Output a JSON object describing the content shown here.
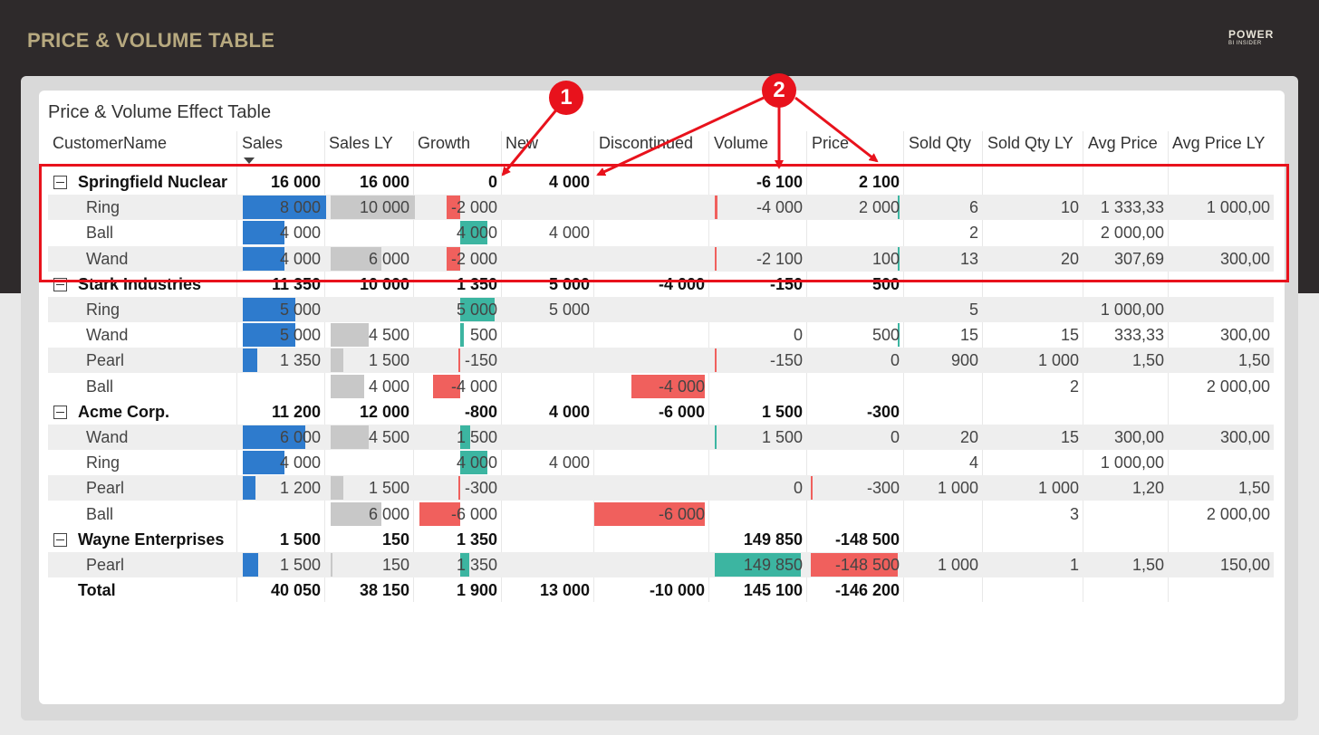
{
  "header": {
    "title": "PRICE & VOLUME TABLE",
    "logo_main": "POWER",
    "logo_sub": "BI INSIDER"
  },
  "visual": {
    "title": "Price & Volume Effect Table"
  },
  "columns": [
    "CustomerName",
    "Sales",
    "Sales LY",
    "Growth",
    "New",
    "Discontinued",
    "Volume",
    "Price",
    "Sold Qty",
    "Sold Qty LY",
    "Avg Price",
    "Avg Price LY"
  ],
  "annotations": {
    "one": "1",
    "two": "2"
  },
  "rows": [
    {
      "type": "group",
      "name": "Springfield Nuclear",
      "sales": "16 000",
      "sales_ly": "16 000",
      "growth": "0",
      "new": "4 000",
      "disc": "",
      "volume": "-6 100",
      "price": "2 100",
      "qty": "",
      "qty_ly": "",
      "avg": "",
      "avg_ly": "",
      "bars": {}
    },
    {
      "type": "child",
      "name": "Ring",
      "sales": "8 000",
      "sales_ly": "10 000",
      "growth": "-2 000",
      "new": "",
      "disc": "",
      "volume": "-4 000",
      "price": "2 000",
      "qty": "6",
      "qty_ly": "10",
      "avg": "1 333,33",
      "avg_ly": "1 000,00",
      "bars": {
        "sales": 8000,
        "sales_ly": 10000,
        "growth": -2000,
        "volume": -4000,
        "price": 2000
      }
    },
    {
      "type": "child",
      "name": "Ball",
      "sales": "4 000",
      "sales_ly": "",
      "growth": "4 000",
      "new": "4 000",
      "disc": "",
      "volume": "",
      "price": "",
      "qty": "2",
      "qty_ly": "",
      "avg": "2 000,00",
      "avg_ly": "",
      "bars": {
        "sales": 4000,
        "growth": 4000
      }
    },
    {
      "type": "child",
      "name": "Wand",
      "sales": "4 000",
      "sales_ly": "6 000",
      "growth": "-2 000",
      "new": "",
      "disc": "",
      "volume": "-2 100",
      "price": "100",
      "qty": "13",
      "qty_ly": "20",
      "avg": "307,69",
      "avg_ly": "300,00",
      "bars": {
        "sales": 4000,
        "sales_ly": 6000,
        "growth": -2000,
        "volume": -2100,
        "price": 100
      }
    },
    {
      "type": "group",
      "name": "Stark Industries",
      "sales": "11 350",
      "sales_ly": "10 000",
      "growth": "1 350",
      "new": "5 000",
      "disc": "-4 000",
      "volume": "-150",
      "price": "500",
      "qty": "",
      "qty_ly": "",
      "avg": "",
      "avg_ly": "",
      "bars": {}
    },
    {
      "type": "child",
      "name": "Ring",
      "sales": "5 000",
      "sales_ly": "",
      "growth": "5 000",
      "new": "5 000",
      "disc": "",
      "volume": "",
      "price": "",
      "qty": "5",
      "qty_ly": "",
      "avg": "1 000,00",
      "avg_ly": "",
      "bars": {
        "sales": 5000,
        "growth": 5000
      }
    },
    {
      "type": "child",
      "name": "Wand",
      "sales": "5 000",
      "sales_ly": "4 500",
      "growth": "500",
      "new": "",
      "disc": "",
      "volume": "0",
      "price": "500",
      "qty": "15",
      "qty_ly": "15",
      "avg": "333,33",
      "avg_ly": "300,00",
      "bars": {
        "sales": 5000,
        "sales_ly": 4500,
        "growth": 500,
        "price": 500
      }
    },
    {
      "type": "child",
      "name": "Pearl",
      "sales": "1 350",
      "sales_ly": "1 500",
      "growth": "-150",
      "new": "",
      "disc": "",
      "volume": "-150",
      "price": "0",
      "qty": "900",
      "qty_ly": "1 000",
      "avg": "1,50",
      "avg_ly": "1,50",
      "bars": {
        "sales": 1350,
        "sales_ly": 1500,
        "growth": -150,
        "volume": -150
      }
    },
    {
      "type": "child",
      "name": "Ball",
      "sales": "",
      "sales_ly": "4 000",
      "growth": "-4 000",
      "new": "",
      "disc": "-4 000",
      "volume": "",
      "price": "",
      "qty": "",
      "qty_ly": "2",
      "avg": "",
      "avg_ly": "2 000,00",
      "bars": {
        "sales_ly": 4000,
        "growth": -4000,
        "disc": -4000
      }
    },
    {
      "type": "group",
      "name": "Acme Corp.",
      "sales": "11 200",
      "sales_ly": "12 000",
      "growth": "-800",
      "new": "4 000",
      "disc": "-6 000",
      "volume": "1 500",
      "price": "-300",
      "qty": "",
      "qty_ly": "",
      "avg": "",
      "avg_ly": "",
      "bars": {}
    },
    {
      "type": "child",
      "name": "Wand",
      "sales": "6 000",
      "sales_ly": "4 500",
      "growth": "1 500",
      "new": "",
      "disc": "",
      "volume": "1 500",
      "price": "0",
      "qty": "20",
      "qty_ly": "15",
      "avg": "300,00",
      "avg_ly": "300,00",
      "bars": {
        "sales": 6000,
        "sales_ly": 4500,
        "growth": 1500,
        "volume": 1500
      }
    },
    {
      "type": "child",
      "name": "Ring",
      "sales": "4 000",
      "sales_ly": "",
      "growth": "4 000",
      "new": "4 000",
      "disc": "",
      "volume": "",
      "price": "",
      "qty": "4",
      "qty_ly": "",
      "avg": "1 000,00",
      "avg_ly": "",
      "bars": {
        "sales": 4000,
        "growth": 4000
      }
    },
    {
      "type": "child",
      "name": "Pearl",
      "sales": "1 200",
      "sales_ly": "1 500",
      "growth": "-300",
      "new": "",
      "disc": "",
      "volume": "0",
      "price": "-300",
      "qty": "1 000",
      "qty_ly": "1 000",
      "avg": "1,20",
      "avg_ly": "1,50",
      "bars": {
        "sales": 1200,
        "sales_ly": 1500,
        "growth": -300,
        "price": -300
      }
    },
    {
      "type": "child",
      "name": "Ball",
      "sales": "",
      "sales_ly": "6 000",
      "growth": "-6 000",
      "new": "",
      "disc": "-6 000",
      "volume": "",
      "price": "",
      "qty": "",
      "qty_ly": "3",
      "avg": "",
      "avg_ly": "2 000,00",
      "bars": {
        "sales_ly": 6000,
        "growth": -6000,
        "disc": -6000
      }
    },
    {
      "type": "group",
      "name": "Wayne Enterprises",
      "sales": "1 500",
      "sales_ly": "150",
      "growth": "1 350",
      "new": "",
      "disc": "",
      "volume": "149 850",
      "price": "-148 500",
      "qty": "",
      "qty_ly": "",
      "avg": "",
      "avg_ly": "",
      "bars": {}
    },
    {
      "type": "child",
      "name": "Pearl",
      "sales": "1 500",
      "sales_ly": "150",
      "growth": "1 350",
      "new": "",
      "disc": "",
      "volume": "149 850",
      "price": "-148 500",
      "qty": "1 000",
      "qty_ly": "1",
      "avg": "1,50",
      "avg_ly": "150,00",
      "bars": {
        "sales": 1500,
        "sales_ly": 150,
        "growth": 1350,
        "volume": 149850,
        "price": -148500
      }
    },
    {
      "type": "total",
      "name": "Total",
      "sales": "40 050",
      "sales_ly": "38 150",
      "growth": "1 900",
      "new": "13 000",
      "disc": "-10 000",
      "volume": "145 100",
      "price": "-146 200",
      "qty": "",
      "qty_ly": "",
      "avg": "",
      "avg_ly": "",
      "bars": {}
    }
  ],
  "colors": {
    "sales_bar": "#2e7bcd",
    "sales_ly_bar": "#c8c8c8",
    "positive": "#3cb5a1",
    "negative": "#f0605d",
    "annotation": "#e8121c"
  }
}
